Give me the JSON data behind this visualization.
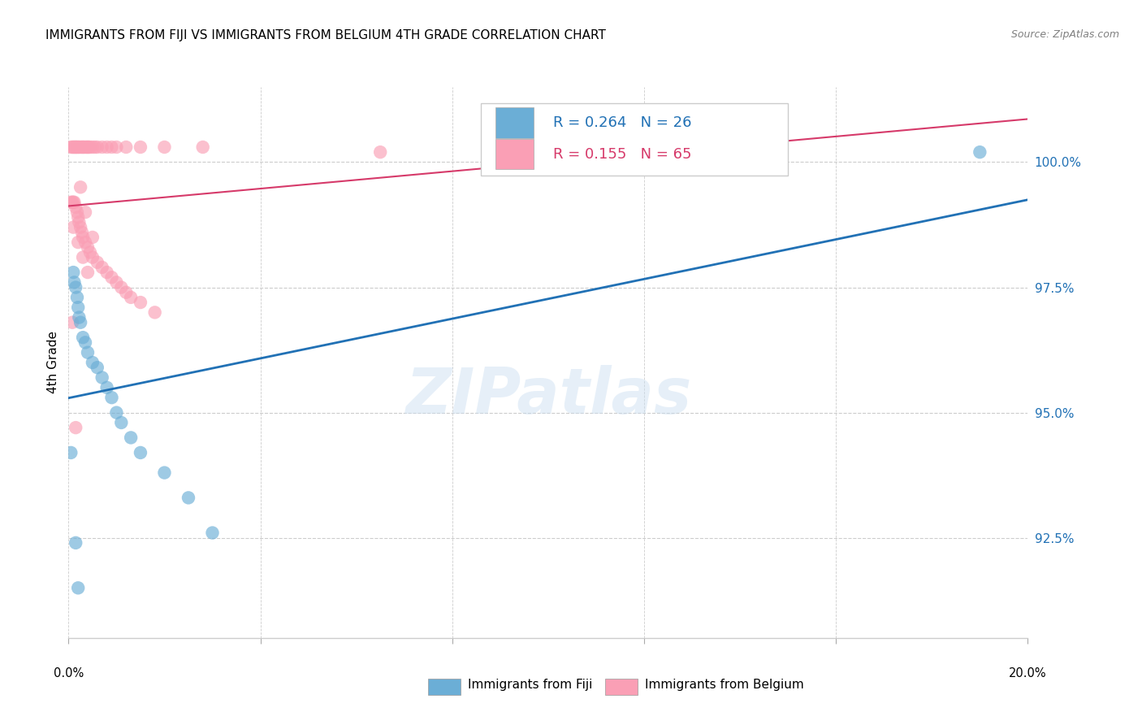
{
  "title": "IMMIGRANTS FROM FIJI VS IMMIGRANTS FROM BELGIUM 4TH GRADE CORRELATION CHART",
  "source": "Source: ZipAtlas.com",
  "ylabel": "4th Grade",
  "watermark": "ZIPatlas",
  "xlim": [
    0.0,
    20.0
  ],
  "ylim": [
    90.5,
    101.5
  ],
  "yticks": [
    92.5,
    95.0,
    97.5,
    100.0
  ],
  "ytick_labels": [
    "92.5%",
    "95.0%",
    "97.5%",
    "100.0%"
  ],
  "fiji_color": "#6baed6",
  "belgium_color": "#fa9fb5",
  "fiji_line_color": "#2171b5",
  "belgium_line_color": "#d63a6a",
  "fiji_R": 0.264,
  "fiji_N": 26,
  "belgium_R": 0.155,
  "belgium_N": 65,
  "legend_label_fiji": "Immigrants from Fiji",
  "legend_label_belgium": "Immigrants from Belgium",
  "fiji_x": [
    0.05,
    0.1,
    0.12,
    0.15,
    0.18,
    0.2,
    0.22,
    0.25,
    0.3,
    0.35,
    0.4,
    0.5,
    0.6,
    0.7,
    0.8,
    0.9,
    1.0,
    1.1,
    1.3,
    1.5,
    2.0,
    2.5,
    3.0,
    0.15,
    0.2,
    19.0
  ],
  "fiji_y": [
    94.2,
    97.8,
    97.6,
    97.5,
    97.3,
    97.1,
    96.9,
    96.8,
    96.5,
    96.4,
    96.2,
    96.0,
    95.9,
    95.7,
    95.5,
    95.3,
    95.0,
    94.8,
    94.5,
    94.2,
    93.8,
    93.3,
    92.6,
    92.4,
    91.5,
    100.2
  ],
  "belgium_x": [
    0.05,
    0.08,
    0.1,
    0.12,
    0.15,
    0.18,
    0.2,
    0.22,
    0.25,
    0.28,
    0.3,
    0.32,
    0.35,
    0.38,
    0.4,
    0.42,
    0.45,
    0.5,
    0.55,
    0.6,
    0.7,
    0.8,
    0.9,
    1.0,
    1.2,
    1.5,
    2.0,
    2.8,
    0.05,
    0.08,
    0.1,
    0.12,
    0.15,
    0.18,
    0.2,
    0.22,
    0.25,
    0.28,
    0.3,
    0.35,
    0.4,
    0.45,
    0.5,
    0.6,
    0.7,
    0.8,
    0.9,
    1.0,
    1.1,
    1.2,
    1.3,
    1.5,
    1.8,
    0.15,
    0.25,
    0.35,
    0.5,
    9.5,
    0.1,
    0.2,
    0.3,
    0.4,
    6.5,
    0.08,
    0.15
  ],
  "belgium_y": [
    100.3,
    100.3,
    100.3,
    100.3,
    100.3,
    100.3,
    100.3,
    100.3,
    100.3,
    100.3,
    100.3,
    100.3,
    100.3,
    100.3,
    100.3,
    100.3,
    100.3,
    100.3,
    100.3,
    100.3,
    100.3,
    100.3,
    100.3,
    100.3,
    100.3,
    100.3,
    100.3,
    100.3,
    99.2,
    99.2,
    99.2,
    99.2,
    99.1,
    99.0,
    98.9,
    98.8,
    98.7,
    98.6,
    98.5,
    98.4,
    98.3,
    98.2,
    98.1,
    98.0,
    97.9,
    97.8,
    97.7,
    97.6,
    97.5,
    97.4,
    97.3,
    97.2,
    97.0,
    100.3,
    99.5,
    99.0,
    98.5,
    100.2,
    98.7,
    98.4,
    98.1,
    97.8,
    100.2,
    96.8,
    94.7
  ],
  "xtick_positions": [
    0,
    4,
    8,
    12,
    16,
    20
  ]
}
